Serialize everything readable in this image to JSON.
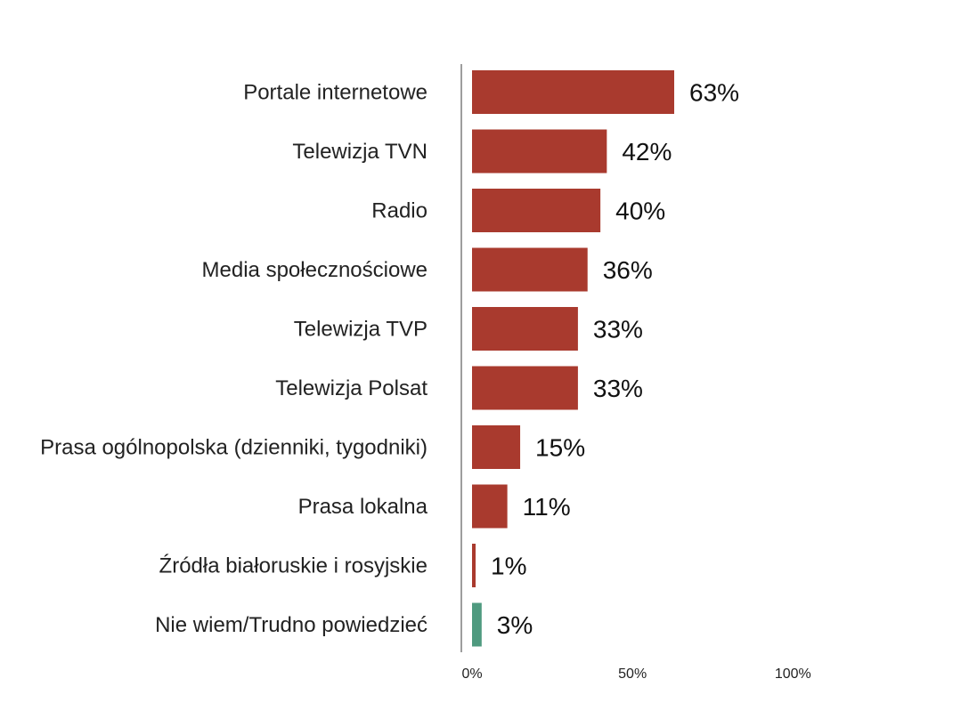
{
  "chart_data": {
    "type": "bar",
    "orientation": "horizontal",
    "categories": [
      "Portale internetowe",
      "Telewizja TVN",
      "Radio",
      "Media społecznościowe",
      "Telewizja TVP",
      "Telewizja Polsat",
      "Prasa ogólnopolska (dzienniki, tygodniki)",
      "Prasa lokalna",
      "Źródła białoruskie i rosyjskie",
      "Nie wiem/Trudno powiedzieć"
    ],
    "values": [
      63,
      42,
      40,
      36,
      33,
      33,
      15,
      11,
      1,
      3
    ],
    "value_labels": [
      "63%",
      "42%",
      "40%",
      "36%",
      "33%",
      "33%",
      "15%",
      "11%",
      "1%",
      "3%"
    ],
    "colors": [
      "#a93a2e",
      "#a93a2e",
      "#a93a2e",
      "#a93a2e",
      "#a93a2e",
      "#a93a2e",
      "#a93a2e",
      "#a93a2e",
      "#a93a2e",
      "#4f9a7f"
    ],
    "xlim": [
      0,
      100
    ],
    "ticks": [
      0,
      50,
      100
    ],
    "tick_labels": [
      "0%",
      "50%",
      "100%"
    ],
    "axis_color": "#9e9e9e",
    "grid": false,
    "legend": "none",
    "title": "",
    "xlabel": "",
    "ylabel": ""
  }
}
